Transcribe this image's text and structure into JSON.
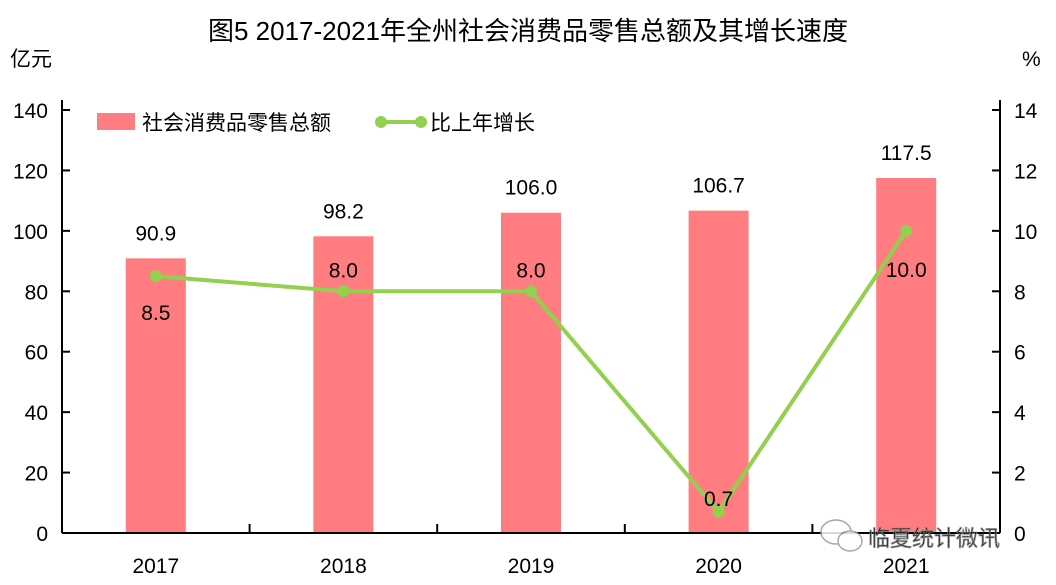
{
  "chart_data": {
    "type": "bar",
    "title": "图5  2017-2021年全州社会消费品零售总额及其增长速度",
    "ylabel_left": "亿元",
    "ylabel_right": "%",
    "categories": [
      "2017",
      "2018",
      "2019",
      "2020",
      "2021"
    ],
    "ylim_left": [
      0,
      140
    ],
    "yticks_left": [
      0,
      20,
      40,
      60,
      80,
      100,
      120,
      140
    ],
    "ylim_right": [
      0,
      14
    ],
    "yticks_right": [
      0,
      2,
      4,
      6,
      8,
      10,
      12,
      14
    ],
    "grid": false,
    "legend_position": "top-left",
    "series": [
      {
        "name": "社会消费品零售总额",
        "type": "bar",
        "axis": "left",
        "color": "#ff7c80",
        "values": [
          90.9,
          98.2,
          106.0,
          106.7,
          117.5
        ],
        "labels": [
          "90.9",
          "98.2",
          "106.0",
          "106.7",
          "117.5"
        ]
      },
      {
        "name": "比上年增长",
        "type": "line",
        "axis": "right",
        "color": "#92d050",
        "values": [
          8.5,
          8.0,
          8.0,
          0.7,
          10.0
        ],
        "labels": [
          "8.5",
          "8.0",
          "8.0",
          "0.7",
          "10.0"
        ]
      }
    ]
  },
  "watermark": "临夏统计微讯"
}
